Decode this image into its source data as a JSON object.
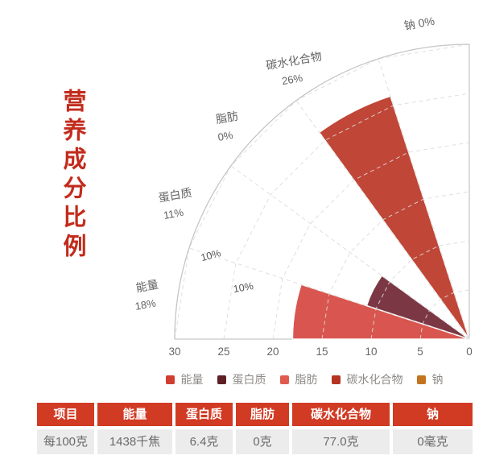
{
  "title": {
    "text": "营养成分比例",
    "color": "#c22b1c"
  },
  "chart_data": {
    "type": "bar",
    "layout": "quarter-polar-fan",
    "title": "营养成分比例",
    "categories": [
      "能量",
      "蛋白质",
      "脂肪",
      "碳水化合物",
      "钠"
    ],
    "values": [
      18,
      11,
      0,
      26,
      0
    ],
    "value_unit": "%",
    "sector_labels": [
      {
        "name": "能量",
        "pct": "18%"
      },
      {
        "name": "蛋白质",
        "pct": "11%"
      },
      {
        "name": "脂肪",
        "pct": "0%"
      },
      {
        "name": "碳水化合物",
        "pct": "26%"
      },
      {
        "name": "钠",
        "pct": "0%"
      }
    ],
    "colors": [
      "#d8564f",
      "#7b3743",
      "#e05a50",
      "#c04637",
      "#c4731f"
    ],
    "radial_axis": {
      "ticks": [
        30,
        25,
        20,
        15,
        10,
        5,
        0
      ],
      "min": 0,
      "max": 30
    },
    "grid_labels": [
      "10%",
      "10%"
    ],
    "sector_span_deg": 18,
    "grid": "dashed-web",
    "legend_position": "bottom"
  },
  "legend": {
    "items": [
      {
        "label": "能量",
        "color": "#cf3e31"
      },
      {
        "label": "蛋白质",
        "color": "#5e1f26"
      },
      {
        "label": "脂肪",
        "color": "#e05a50"
      },
      {
        "label": "碳水化合物",
        "color": "#b5341f"
      },
      {
        "label": "钠",
        "color": "#c4731f"
      }
    ]
  },
  "table": {
    "header_bg": "#d13a23",
    "headers": [
      "项目",
      "能量",
      "蛋白质",
      "脂肪",
      "碳水化合物",
      "钠"
    ],
    "rows": [
      [
        "每100克",
        "1438千焦",
        "6.4克",
        "0克",
        "77.0克",
        "0毫克"
      ]
    ]
  }
}
